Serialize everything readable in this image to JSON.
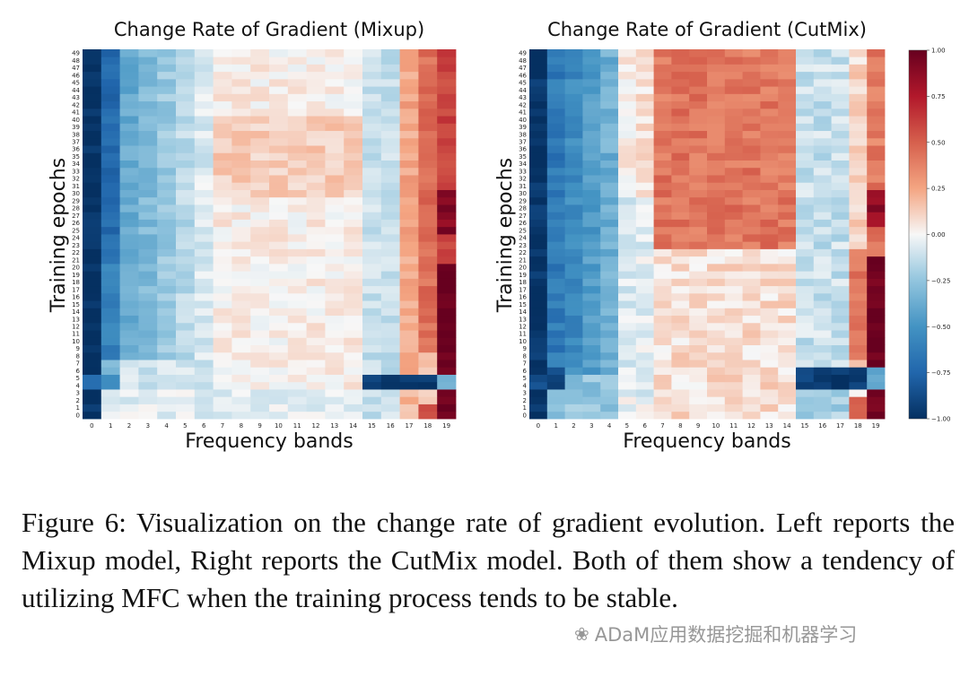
{
  "chart_data": [
    {
      "type": "heatmap",
      "title": "Change Rate of Gradient (Mixup)",
      "xlabel": "Frequency bands",
      "ylabel": "Training epochs",
      "x_ticks": [
        "0",
        "1",
        "2",
        "3",
        "4",
        "5",
        "6",
        "7",
        "8",
        "9",
        "10",
        "11",
        "12",
        "13",
        "14",
        "15",
        "16",
        "17",
        "18",
        "19"
      ],
      "y_ticks": [
        "0",
        "1",
        "2",
        "3",
        "4",
        "5",
        "6",
        "7",
        "8",
        "9",
        "10",
        "11",
        "12",
        "13",
        "14",
        "15",
        "16",
        "17",
        "18",
        "19",
        "20",
        "21",
        "22",
        "23",
        "24",
        "25",
        "26",
        "27",
        "28",
        "29",
        "30",
        "31",
        "32",
        "33",
        "34",
        "35",
        "36",
        "37",
        "38",
        "39",
        "40",
        "41",
        "42",
        "43",
        "44",
        "45",
        "46",
        "47",
        "48",
        "49"
      ],
      "y_order": "0 at bottom, 49 at top",
      "vmin": -1.0,
      "vmax": 1.0,
      "colormap": "RdBu_r",
      "model": "mixup"
    },
    {
      "type": "heatmap",
      "title": "Change Rate of Gradient (CutMix)",
      "xlabel": "Frequency bands",
      "ylabel": "Training epochs",
      "x_ticks": [
        "0",
        "1",
        "2",
        "3",
        "4",
        "5",
        "6",
        "7",
        "8",
        "9",
        "10",
        "11",
        "12",
        "13",
        "14",
        "15",
        "16",
        "17",
        "18",
        "19"
      ],
      "y_ticks": [
        "0",
        "1",
        "2",
        "3",
        "4",
        "5",
        "6",
        "7",
        "8",
        "9",
        "10",
        "11",
        "12",
        "13",
        "14",
        "15",
        "16",
        "17",
        "18",
        "19",
        "20",
        "21",
        "22",
        "23",
        "24",
        "25",
        "26",
        "27",
        "28",
        "29",
        "30",
        "31",
        "32",
        "33",
        "34",
        "35",
        "36",
        "37",
        "38",
        "39",
        "40",
        "41",
        "42",
        "43",
        "44",
        "45",
        "46",
        "47",
        "48",
        "49"
      ],
      "y_order": "0 at bottom, 49 at top",
      "vmin": -1.0,
      "vmax": 1.0,
      "colormap": "RdBu_r",
      "model": "cutmix",
      "colorbar": {
        "ticks": [
          -1.0,
          -0.75,
          -0.5,
          -0.25,
          0.0,
          0.25,
          0.5,
          0.75,
          1.0
        ],
        "tick_labels": [
          "−1.00",
          "−0.75",
          "−0.50",
          "−0.25",
          "0.00",
          "0.25",
          "0.50",
          "0.75",
          "1.00"
        ]
      }
    }
  ],
  "caption": "Figure 6: Visualization on the change rate of gradient evolution. Left reports the Mixup model, Right reports the CutMix model. Both of them show a tendency of utilizing MFC when the training process tends to be stable.",
  "watermark": "ADaM应用数据挖掘和机器学习",
  "colors": {
    "strong_negative": "#053061",
    "neutral": "#f7f7f7",
    "strong_positive": "#67001f"
  }
}
